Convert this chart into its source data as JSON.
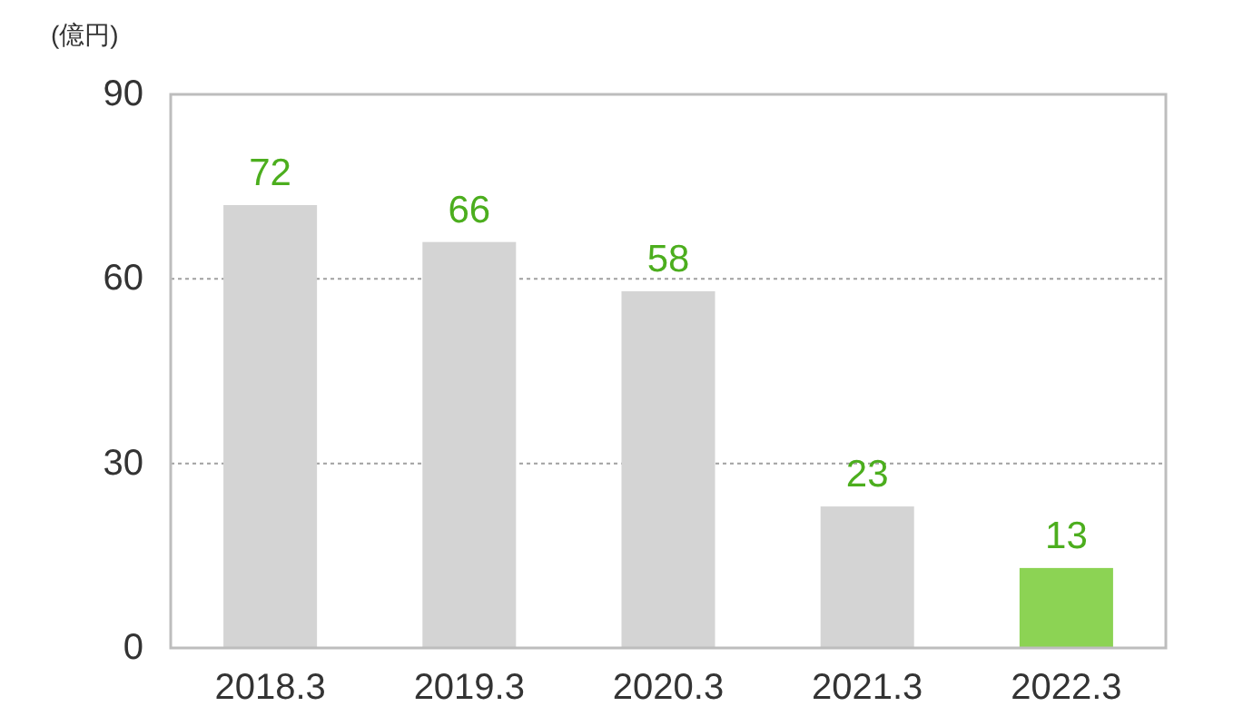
{
  "chart_data": {
    "type": "bar",
    "ylabel": "(億円)",
    "categories": [
      "2018.3",
      "2019.3",
      "2020.3",
      "2021.3",
      "2022.3"
    ],
    "values": [
      72,
      66,
      58,
      23,
      13
    ],
    "colors": [
      "#d4d4d4",
      "#d4d4d4",
      "#d4d4d4",
      "#d4d4d4",
      "#8cd354"
    ],
    "ylim": [
      0,
      90
    ],
    "yticks": [
      0,
      30,
      60,
      90
    ],
    "grid": "y",
    "data_labels": true
  }
}
